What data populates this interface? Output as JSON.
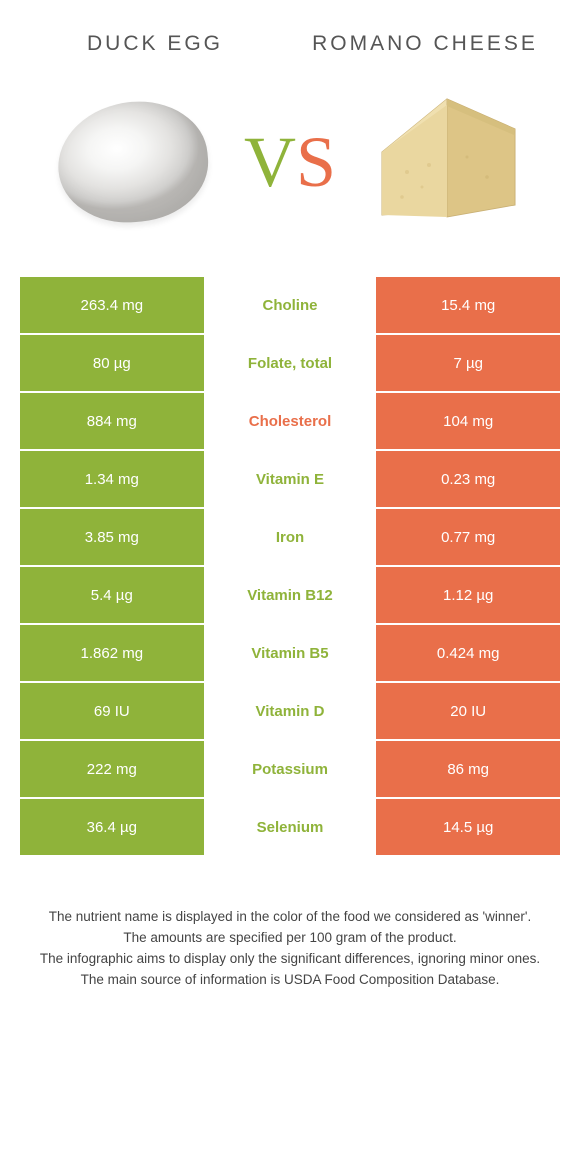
{
  "food_a": {
    "title": "DUCK EGG"
  },
  "food_b": {
    "title": "ROMANO CHEESE"
  },
  "vs": {
    "v": "V",
    "s": "S"
  },
  "colors": {
    "green": "#8fb33a",
    "orange": "#e96f4a",
    "bg": "#ffffff",
    "text": "#444444"
  },
  "rows": [
    {
      "left": "263.4 mg",
      "name": "Choline",
      "right": "15.4 mg",
      "winner": "a"
    },
    {
      "left": "80 µg",
      "name": "Folate, total",
      "right": "7 µg",
      "winner": "a"
    },
    {
      "left": "884 mg",
      "name": "Cholesterol",
      "right": "104 mg",
      "winner": "b"
    },
    {
      "left": "1.34 mg",
      "name": "Vitamin E",
      "right": "0.23 mg",
      "winner": "a"
    },
    {
      "left": "3.85 mg",
      "name": "Iron",
      "right": "0.77 mg",
      "winner": "a"
    },
    {
      "left": "5.4 µg",
      "name": "Vitamin B12",
      "right": "1.12 µg",
      "winner": "a"
    },
    {
      "left": "1.862 mg",
      "name": "Vitamin B5",
      "right": "0.424 mg",
      "winner": "a"
    },
    {
      "left": "69 IU",
      "name": "Vitamin D",
      "right": "20 IU",
      "winner": "a"
    },
    {
      "left": "222 mg",
      "name": "Potassium",
      "right": "86 mg",
      "winner": "a"
    },
    {
      "left": "36.4 µg",
      "name": "Selenium",
      "right": "14.5 µg",
      "winner": "a"
    }
  ],
  "footer": {
    "l1": "The nutrient name is displayed in the color of the food we considered as 'winner'.",
    "l2": "The amounts are specified per 100 gram of the product.",
    "l3": "The infographic aims to display only the significant differences, ignoring minor ones.",
    "l4": "The main source of information is USDA Food Composition Database."
  }
}
